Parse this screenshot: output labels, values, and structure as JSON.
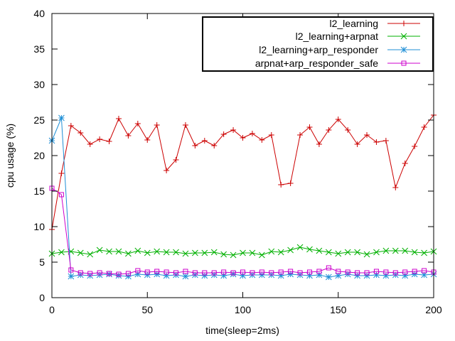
{
  "chart_data": {
    "type": "line",
    "title": "",
    "xlabel": "time(sleep=2ms)",
    "ylabel": "cpu usage (%)",
    "xlim": [
      0,
      200
    ],
    "ylim": [
      0,
      40
    ],
    "xticks": [
      0,
      50,
      100,
      150,
      200
    ],
    "yticks": [
      0,
      5,
      10,
      15,
      20,
      25,
      30,
      35,
      40
    ],
    "grid": false,
    "legend_position": "top-right",
    "x": [
      0,
      5,
      10,
      15,
      20,
      25,
      30,
      35,
      40,
      45,
      50,
      55,
      60,
      65,
      70,
      75,
      80,
      85,
      90,
      95,
      100,
      105,
      110,
      115,
      120,
      125,
      130,
      135,
      140,
      145,
      150,
      155,
      160,
      165,
      170,
      175,
      180,
      185,
      190,
      195,
      200
    ],
    "series": [
      {
        "name": "l2_learning",
        "color": "#cc0000",
        "marker": "plus",
        "values": [
          9.6,
          17.5,
          24.2,
          23.2,
          21.6,
          22.3,
          22.0,
          25.2,
          22.8,
          24.5,
          22.2,
          24.3,
          17.9,
          19.4,
          24.3,
          21.4,
          22.1,
          21.4,
          23.0,
          23.6,
          22.5,
          23.1,
          22.2,
          22.9,
          15.9,
          16.1,
          22.9,
          24.0,
          21.6,
          23.6,
          25.1,
          23.6,
          21.6,
          22.9,
          21.9,
          22.1,
          15.5,
          18.9,
          21.3,
          24.0,
          25.7
        ]
      },
      {
        "name": "l2_learning+arpnat",
        "color": "#00b000",
        "marker": "x",
        "values": [
          6.2,
          6.4,
          6.5,
          6.3,
          6.1,
          6.7,
          6.5,
          6.5,
          6.2,
          6.6,
          6.3,
          6.5,
          6.4,
          6.4,
          6.2,
          6.3,
          6.3,
          6.4,
          6.1,
          6.0,
          6.3,
          6.3,
          6.0,
          6.5,
          6.4,
          6.7,
          7.1,
          6.8,
          6.6,
          6.4,
          6.2,
          6.4,
          6.4,
          6.1,
          6.4,
          6.6,
          6.6,
          6.6,
          6.4,
          6.3,
          6.5
        ]
      },
      {
        "name": "l2_learning+arp_responder",
        "color": "#1f8fd6",
        "marker": "star",
        "values": [
          22.1,
          25.3,
          3.0,
          3.2,
          3.1,
          3.2,
          3.3,
          3.1,
          3.0,
          3.3,
          3.2,
          3.3,
          3.1,
          3.2,
          3.0,
          3.2,
          3.1,
          3.2,
          3.1,
          3.3,
          3.1,
          3.2,
          3.2,
          3.2,
          3.1,
          3.3,
          3.2,
          3.1,
          3.2,
          2.9,
          3.1,
          3.3,
          3.1,
          3.1,
          3.2,
          3.1,
          3.2,
          3.1,
          3.3,
          3.2,
          3.3
        ]
      },
      {
        "name": "arpnat+arp_responder_safe",
        "color": "#cc00cc",
        "marker": "square",
        "values": [
          15.4,
          14.5,
          3.9,
          3.5,
          3.4,
          3.5,
          3.4,
          3.3,
          3.4,
          3.8,
          3.6,
          3.7,
          3.6,
          3.5,
          3.7,
          3.5,
          3.5,
          3.5,
          3.6,
          3.5,
          3.6,
          3.5,
          3.6,
          3.5,
          3.6,
          3.7,
          3.5,
          3.6,
          3.7,
          4.2,
          3.7,
          3.6,
          3.5,
          3.5,
          3.7,
          3.6,
          3.5,
          3.6,
          3.7,
          3.8,
          3.6
        ]
      }
    ]
  }
}
